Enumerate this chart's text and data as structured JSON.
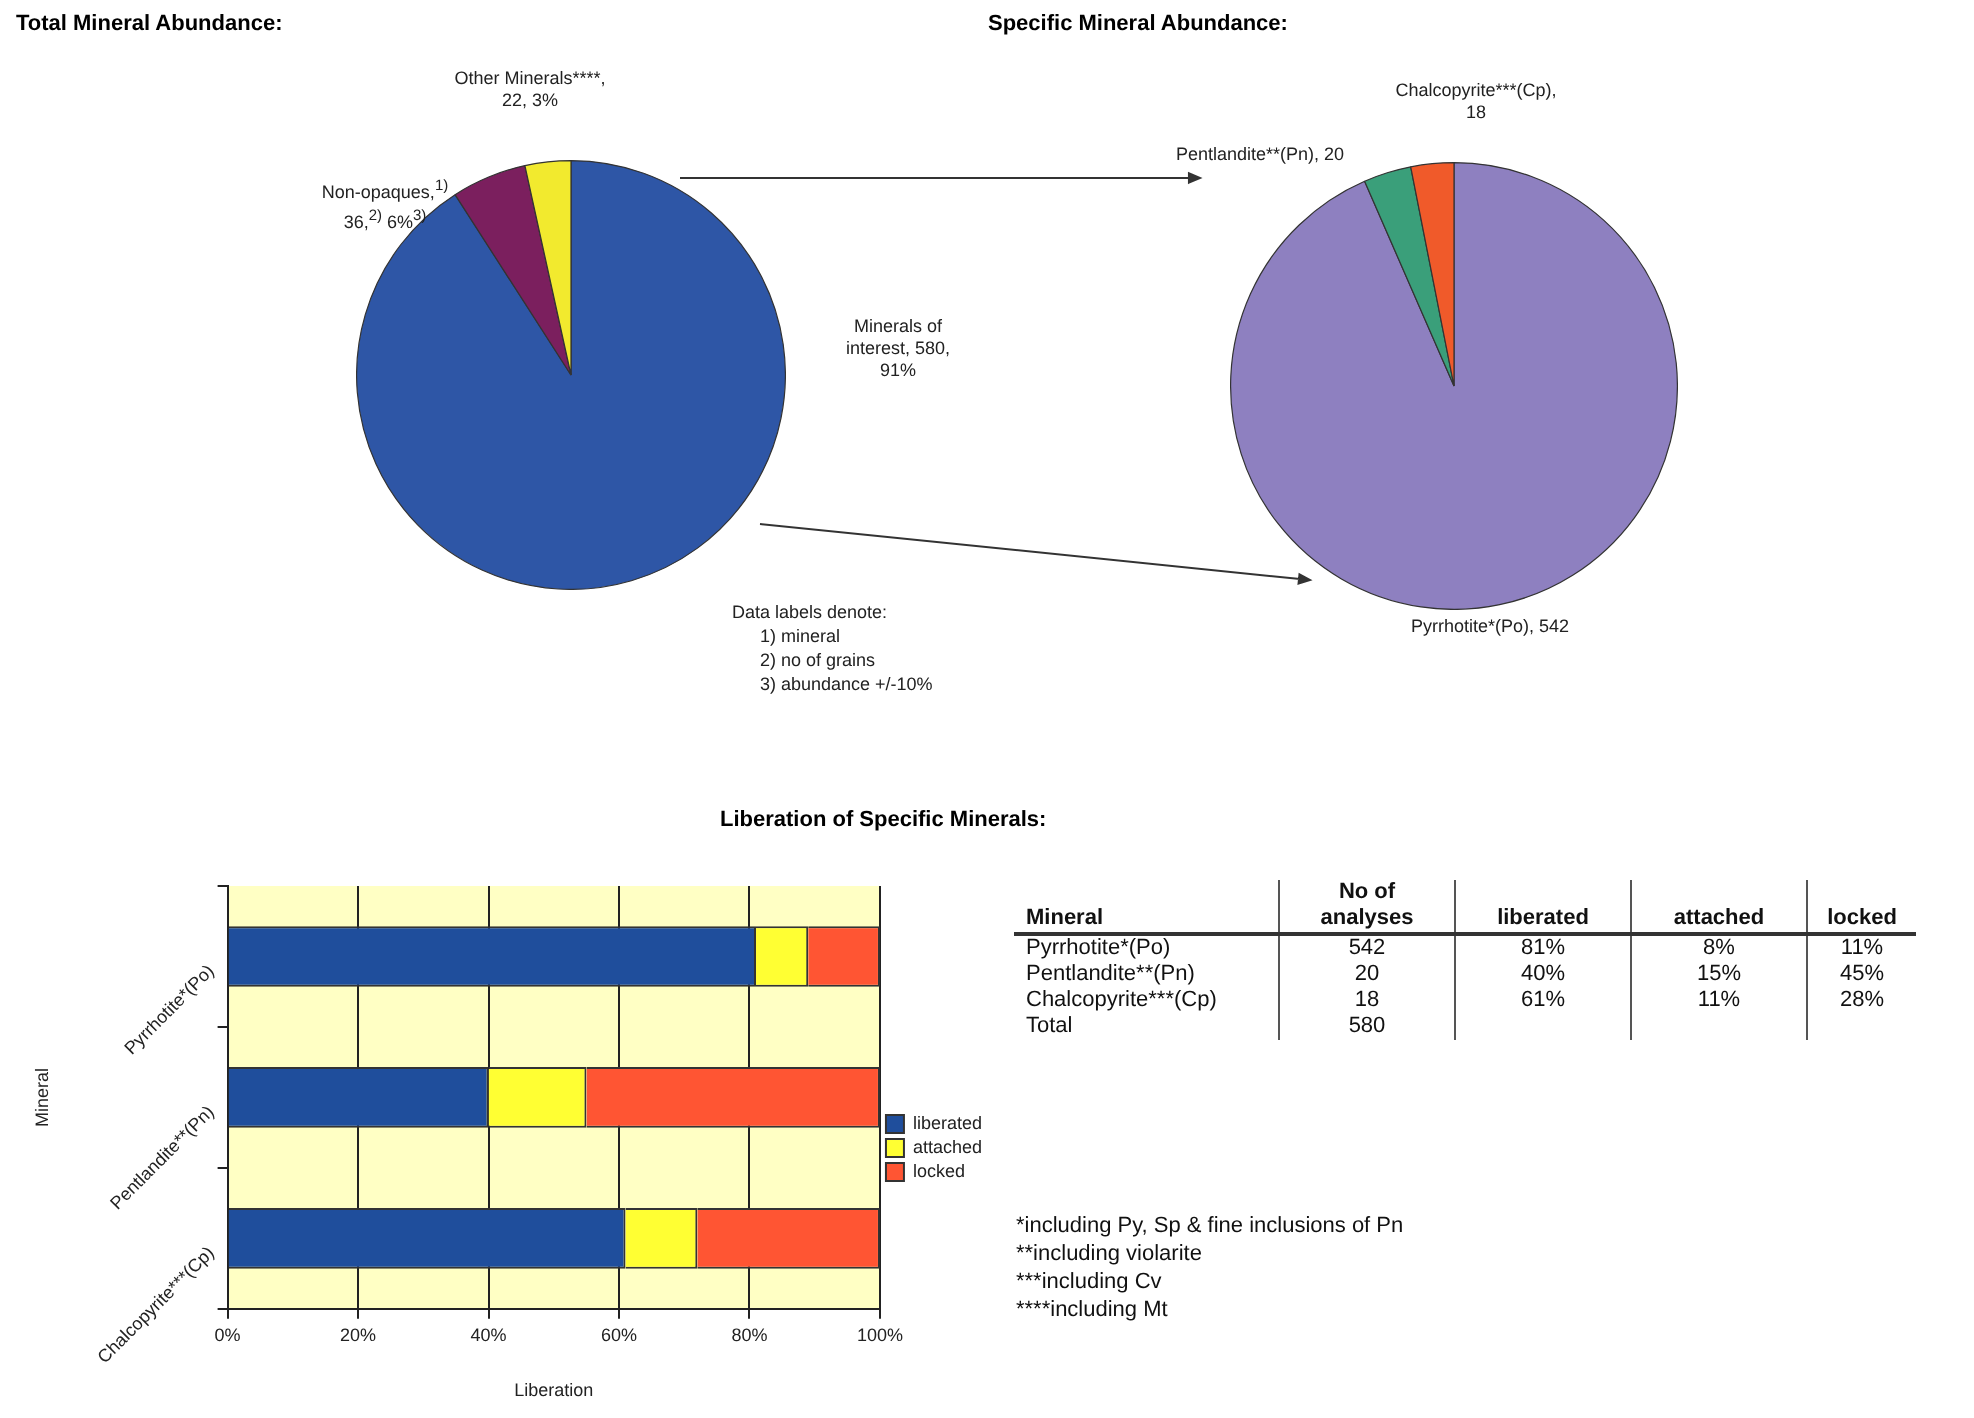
{
  "chart_data": [
    {
      "type": "pie",
      "title": "Total Mineral Abundance:",
      "categories": [
        "Minerals of interest, 580, 91%",
        "Non-opaques,$^{1)}$ 36,$^{2)}$ 6%$^{3)}$",
        "Other Minerals****, 22, 3%"
      ],
      "values": [
        580,
        36,
        22
      ],
      "colors": [
        "#2e56a6",
        "#7b1f5e",
        "#f2ea2e"
      ],
      "annotations": [
        "Data labels denote:",
        "1) mineral",
        "2) no of grains",
        "3) abundance +/-10%"
      ]
    },
    {
      "type": "pie",
      "title": "Specific Mineral Abundance:",
      "categories": [
        "Pyrrhotite*(Po), 542",
        "Pentlandite**(Pn), 20",
        "Chalcopyrite***(Cp), 18"
      ],
      "values": [
        542,
        20,
        18
      ],
      "colors": [
        "#8e80c0",
        "#3a9f7a",
        "#f05a2a"
      ]
    },
    {
      "type": "bar",
      "title": "Liberation of Specific Minerals:",
      "orientation": "horizontal",
      "stacked": true,
      "categories": [
        "Pyrrhotite*(Po)",
        "Pentlandite**(Pn)",
        "Chalcopyrite***(Cp)"
      ],
      "series": [
        {
          "name": "liberated",
          "color": "#1f4e9c",
          "values": [
            81,
            40,
            61
          ]
        },
        {
          "name": "attached",
          "color": "#ffff33",
          "values": [
            8,
            15,
            11
          ]
        },
        {
          "name": "locked",
          "color": "#ff5533",
          "values": [
            11,
            45,
            28
          ]
        }
      ],
      "xlim": [
        0,
        100
      ],
      "xticks": [
        {
          "value": 0,
          "label": "0%"
        },
        {
          "value": 20,
          "label": "20%"
        },
        {
          "value": 40,
          "label": "40%"
        },
        {
          "value": 60,
          "label": "60%"
        },
        {
          "value": 80,
          "label": "80%"
        },
        {
          "value": 100,
          "label": "100%"
        }
      ],
      "xlabel": "Liberation",
      "ylabel": "Mineral",
      "grid": "x",
      "legend": "right"
    },
    {
      "type": "other",
      "ylabel": "Mineral",
      "categories": [
        "Pyrrhotite*(Po)",
        "Pentlandite**(Pn)",
        "Chalcopyrite***(Cp)",
        "Total"
      ],
      "series": [
        {
          "name": "No of analyses",
          "values": [
            542,
            20,
            18,
            580
          ],
          "value_labels": [
            "542",
            "20",
            "18",
            "580"
          ]
        },
        {
          "name": "liberated",
          "values": [
            81,
            40,
            61,
            null
          ],
          "value_labels": [
            "81%",
            "40%",
            "61%",
            null
          ]
        },
        {
          "name": "attached",
          "values": [
            8,
            15,
            11,
            null
          ],
          "value_labels": [
            "8%",
            "15%",
            "11%",
            null
          ]
        },
        {
          "name": "locked",
          "values": [
            11,
            45,
            28,
            null
          ],
          "value_labels": [
            "11%",
            "45%",
            "28%",
            null
          ]
        }
      ],
      "annotations": [
        "*including Py, Sp & fine inclusions of Pn",
        "**including violarite",
        "***including Cv",
        "****including Mt"
      ]
    }
  ]
}
